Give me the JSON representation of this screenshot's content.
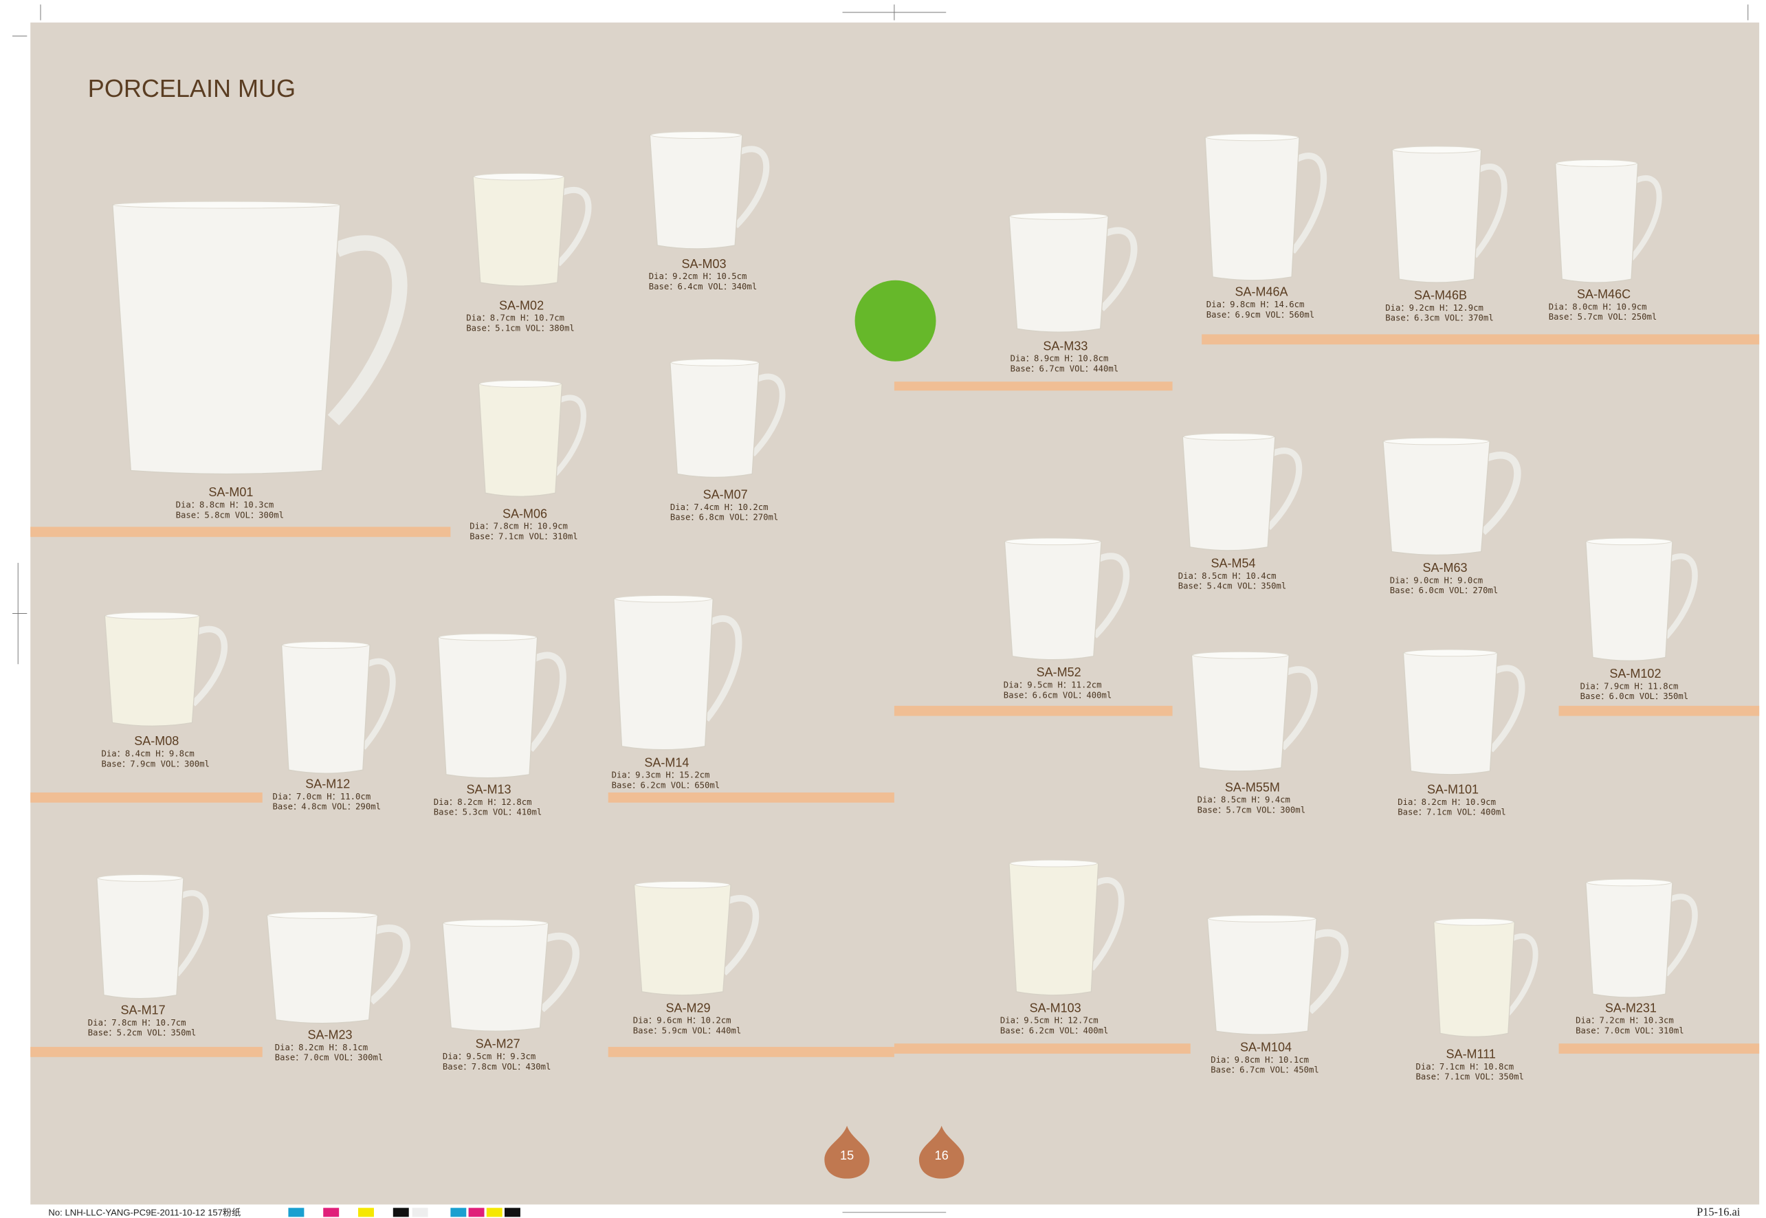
{
  "header": {
    "title": "PORCELAIN MUG"
  },
  "products": [
    {
      "code": "SA-M01",
      "dims": "Dia：8.8cm H：10.3cm",
      "base": "Base：5.8cm VOL：300ml"
    },
    {
      "code": "SA-M02",
      "dims": "Dia：8.7cm H：10.7cm",
      "base": "Base：5.1cm VOL：380ml"
    },
    {
      "code": "SA-M03",
      "dims": "Dia：9.2cm H：10.5cm",
      "base": "Base：6.4cm VOL：340ml"
    },
    {
      "code": "SA-M06",
      "dims": "Dia：7.8cm H：10.9cm",
      "base": "Base：7.1cm VOL：310ml"
    },
    {
      "code": "SA-M07",
      "dims": "Dia：7.4cm H：10.2cm",
      "base": "Base：6.8cm VOL：270ml"
    },
    {
      "code": "SA-M33",
      "dims": "Dia：8.9cm H：10.8cm",
      "base": "Base：6.7cm VOL：440ml"
    },
    {
      "code": "SA-M46A",
      "dims": "Dia：9.8cm H：14.6cm",
      "base": "Base：6.9cm VOL：560ml"
    },
    {
      "code": "SA-M46B",
      "dims": "Dia：9.2cm H：12.9cm",
      "base": "Base：6.3cm VOL：370ml"
    },
    {
      "code": "SA-M46C",
      "dims": "Dia：8.0cm H：10.9cm",
      "base": "Base：5.7cm VOL：250ml"
    },
    {
      "code": "SA-M08",
      "dims": "Dia：8.4cm H：9.8cm",
      "base": "Base：7.9cm VOL：300ml"
    },
    {
      "code": "SA-M12",
      "dims": "Dia：7.0cm H：11.0cm",
      "base": "Base：4.8cm VOL：290ml"
    },
    {
      "code": "SA-M13",
      "dims": "Dia：8.2cm H：12.8cm",
      "base": "Base：5.3cm VOL：410ml"
    },
    {
      "code": "SA-M14",
      "dims": "Dia：9.3cm H：15.2cm",
      "base": "Base：6.2cm VOL：650ml"
    },
    {
      "code": "SA-M52",
      "dims": "Dia：9.5cm H：11.2cm",
      "base": "Base：6.6cm VOL：400ml"
    },
    {
      "code": "SA-M54",
      "dims": "Dia：8.5cm H：10.4cm",
      "base": "Base：5.4cm VOL：350ml"
    },
    {
      "code": "SA-M63",
      "dims": "Dia：9.0cm H：9.0cm",
      "base": "Base：6.0cm VOL：270ml"
    },
    {
      "code": "SA-M102",
      "dims": "Dia：7.9cm H：11.8cm",
      "base": "Base：6.0cm VOL：350ml"
    },
    {
      "code": "SA-M55M",
      "dims": "Dia：8.5cm H：9.4cm",
      "base": "Base：5.7cm VOL：300ml"
    },
    {
      "code": "SA-M101",
      "dims": "Dia：8.2cm H：10.9cm",
      "base": "Base：7.1cm VOL：400ml"
    },
    {
      "code": "SA-M17",
      "dims": "Dia：7.8cm H：10.7cm",
      "base": "Base：5.2cm VOL：350ml"
    },
    {
      "code": "SA-M23",
      "dims": "Dia：8.2cm H：8.1cm",
      "base": "Base：7.0cm VOL：300ml"
    },
    {
      "code": "SA-M27",
      "dims": "Dia：9.5cm H：9.3cm",
      "base": "Base：7.8cm VOL：430ml"
    },
    {
      "code": "SA-M29",
      "dims": "Dia：9.6cm H：10.2cm",
      "base": "Base：5.9cm VOL：440ml"
    },
    {
      "code": "SA-M103",
      "dims": "Dia：9.5cm H：12.7cm",
      "base": "Base：6.2cm VOL：400ml"
    },
    {
      "code": "SA-M104",
      "dims": "Dia：9.8cm H：10.1cm",
      "base": "Base：6.7cm VOL：450ml"
    },
    {
      "code": "SA-M111",
      "dims": "Dia：7.1cm H：10.8cm",
      "base": "Base：7.1cm VOL：350ml"
    },
    {
      "code": "SA-M231",
      "dims": "Dia：7.2cm H：10.3cm",
      "base": "Base：7.0cm VOL：310ml"
    }
  ],
  "page_numbers": [
    "15",
    "16"
  ],
  "footer": {
    "job": "No: LNH-LLC-YANG-PC9E-2011-10-12  157粉纸",
    "file": "P15-16.ai"
  }
}
